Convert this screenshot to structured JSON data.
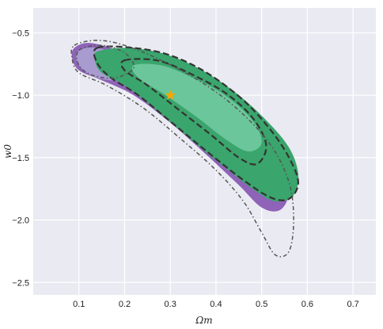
{
  "chart_data": {
    "type": "contour",
    "xlabel": "Ωm",
    "ylabel": "w0",
    "xlim": [
      0.0,
      0.75
    ],
    "ylim": [
      -2.6,
      -0.3
    ],
    "xticks": [
      0.1,
      0.2,
      0.3,
      0.4,
      0.5,
      0.6,
      0.7
    ],
    "xtick_labels": [
      "0.1",
      "0.2",
      "0.3",
      "0.4",
      "0.5",
      "0.6",
      "0.7"
    ],
    "yticks": [
      -0.5,
      -1.0,
      -1.5,
      -2.0,
      -2.5
    ],
    "ytick_labels": [
      "−0.5",
      "−1.0",
      "−1.5",
      "−2.0",
      "−2.5"
    ],
    "grid": true,
    "background": "#eaeaf2",
    "fiducial": {
      "x": 0.3,
      "y": -1.0,
      "marker": "star",
      "color": "#f5a800"
    },
    "contours": [
      {
        "style": "filled",
        "level": "outer",
        "color": "#8e63b8",
        "points": [
          [
            0.09,
            -0.62
          ],
          [
            0.12,
            -0.58
          ],
          [
            0.17,
            -0.62
          ],
          [
            0.25,
            -0.72
          ],
          [
            0.33,
            -0.86
          ],
          [
            0.42,
            -1.05
          ],
          [
            0.5,
            -1.3
          ],
          [
            0.55,
            -1.55
          ],
          [
            0.56,
            -1.78
          ],
          [
            0.54,
            -1.92
          ],
          [
            0.5,
            -1.9
          ],
          [
            0.45,
            -1.72
          ],
          [
            0.38,
            -1.48
          ],
          [
            0.3,
            -1.22
          ],
          [
            0.22,
            -1.0
          ],
          [
            0.15,
            -0.88
          ],
          [
            0.1,
            -0.8
          ],
          [
            0.085,
            -0.7
          ]
        ]
      },
      {
        "style": "filled",
        "level": "inner",
        "color": "#a79bd0",
        "points": [
          [
            0.1,
            -0.64
          ],
          [
            0.14,
            -0.62
          ],
          [
            0.2,
            -0.7
          ],
          [
            0.22,
            -0.8
          ],
          [
            0.19,
            -0.88
          ],
          [
            0.14,
            -0.86
          ],
          [
            0.11,
            -0.8
          ],
          [
            0.095,
            -0.72
          ]
        ]
      },
      {
        "style": "filled",
        "level": "outer",
        "color": "#3aa56c",
        "points": [
          [
            0.14,
            -0.65
          ],
          [
            0.2,
            -0.62
          ],
          [
            0.28,
            -0.66
          ],
          [
            0.36,
            -0.78
          ],
          [
            0.44,
            -0.97
          ],
          [
            0.51,
            -1.2
          ],
          [
            0.56,
            -1.42
          ],
          [
            0.58,
            -1.63
          ],
          [
            0.57,
            -1.8
          ],
          [
            0.53,
            -1.85
          ],
          [
            0.48,
            -1.75
          ],
          [
            0.41,
            -1.55
          ],
          [
            0.34,
            -1.34
          ],
          [
            0.27,
            -1.12
          ],
          [
            0.2,
            -0.92
          ],
          [
            0.15,
            -0.82
          ],
          [
            0.135,
            -0.72
          ]
        ]
      },
      {
        "style": "filled",
        "level": "inner",
        "color": "#6cc69b",
        "points": [
          [
            0.22,
            -0.76
          ],
          [
            0.28,
            -0.76
          ],
          [
            0.35,
            -0.86
          ],
          [
            0.42,
            -1.0
          ],
          [
            0.48,
            -1.2
          ],
          [
            0.5,
            -1.38
          ],
          [
            0.47,
            -1.45
          ],
          [
            0.42,
            -1.35
          ],
          [
            0.36,
            -1.18
          ],
          [
            0.29,
            -1.0
          ],
          [
            0.23,
            -0.86
          ]
        ]
      },
      {
        "style": "dashed",
        "level": "outer",
        "color": "#333333",
        "points": [
          [
            0.14,
            -0.62
          ],
          [
            0.22,
            -0.62
          ],
          [
            0.3,
            -0.68
          ],
          [
            0.38,
            -0.82
          ],
          [
            0.46,
            -1.04
          ],
          [
            0.52,
            -1.28
          ],
          [
            0.56,
            -1.5
          ],
          [
            0.58,
            -1.7
          ],
          [
            0.56,
            -1.83
          ],
          [
            0.52,
            -1.82
          ],
          [
            0.46,
            -1.68
          ],
          [
            0.39,
            -1.48
          ],
          [
            0.31,
            -1.24
          ],
          [
            0.23,
            -1.0
          ],
          [
            0.17,
            -0.86
          ],
          [
            0.14,
            -0.74
          ]
        ]
      },
      {
        "style": "dashed",
        "level": "inner",
        "color": "#333333",
        "points": [
          [
            0.2,
            -0.72
          ],
          [
            0.27,
            -0.72
          ],
          [
            0.34,
            -0.82
          ],
          [
            0.42,
            -0.98
          ],
          [
            0.48,
            -1.18
          ],
          [
            0.51,
            -1.4
          ],
          [
            0.49,
            -1.55
          ],
          [
            0.45,
            -1.5
          ],
          [
            0.39,
            -1.32
          ],
          [
            0.32,
            -1.12
          ],
          [
            0.25,
            -0.92
          ],
          [
            0.2,
            -0.8
          ]
        ]
      },
      {
        "style": "dotted",
        "level": "outer",
        "color": "#555555",
        "points": [
          [
            0.09,
            -0.6
          ],
          [
            0.14,
            -0.56
          ],
          [
            0.2,
            -0.6
          ],
          [
            0.28,
            -0.72
          ],
          [
            0.37,
            -0.9
          ],
          [
            0.45,
            -1.12
          ],
          [
            0.52,
            -1.4
          ],
          [
            0.56,
            -1.7
          ],
          [
            0.57,
            -2.0
          ],
          [
            0.56,
            -2.25
          ],
          [
            0.53,
            -2.28
          ],
          [
            0.5,
            -2.1
          ],
          [
            0.46,
            -1.85
          ],
          [
            0.4,
            -1.6
          ],
          [
            0.32,
            -1.34
          ],
          [
            0.24,
            -1.1
          ],
          [
            0.16,
            -0.92
          ],
          [
            0.1,
            -0.82
          ],
          [
            0.085,
            -0.7
          ]
        ]
      },
      {
        "style": "dotted",
        "level": "inner",
        "color": "#555555",
        "points": [
          [
            0.1,
            -0.64
          ],
          [
            0.15,
            -0.6
          ],
          [
            0.2,
            -0.66
          ],
          [
            0.22,
            -0.78
          ],
          [
            0.18,
            -0.86
          ],
          [
            0.13,
            -0.84
          ],
          [
            0.1,
            -0.76
          ]
        ]
      }
    ]
  }
}
